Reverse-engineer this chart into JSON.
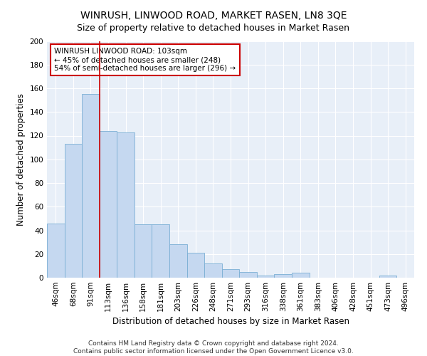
{
  "title": "WINRUSH, LINWOOD ROAD, MARKET RASEN, LN8 3QE",
  "subtitle": "Size of property relative to detached houses in Market Rasen",
  "xlabel": "Distribution of detached houses by size in Market Rasen",
  "ylabel": "Number of detached properties",
  "categories": [
    "46sqm",
    "68sqm",
    "91sqm",
    "113sqm",
    "136sqm",
    "158sqm",
    "181sqm",
    "203sqm",
    "226sqm",
    "248sqm",
    "271sqm",
    "293sqm",
    "316sqm",
    "338sqm",
    "361sqm",
    "383sqm",
    "406sqm",
    "428sqm",
    "451sqm",
    "473sqm",
    "496sqm"
  ],
  "values": [
    46,
    113,
    155,
    124,
    123,
    45,
    45,
    28,
    21,
    12,
    7,
    5,
    2,
    3,
    4,
    0,
    0,
    0,
    0,
    2,
    0
  ],
  "bar_color": "#c5d8f0",
  "bar_edge_color": "#7aafd4",
  "vline_x_index": 3,
  "vline_color": "#cc0000",
  "annotation_text": "WINRUSH LINWOOD ROAD: 103sqm\n← 45% of detached houses are smaller (248)\n54% of semi-detached houses are larger (296) →",
  "annotation_box_color": "white",
  "annotation_box_edge_color": "#cc0000",
  "ylim": [
    0,
    200
  ],
  "yticks": [
    0,
    20,
    40,
    60,
    80,
    100,
    120,
    140,
    160,
    180,
    200
  ],
  "background_color": "#e8eff8",
  "footer_text": "Contains HM Land Registry data © Crown copyright and database right 2024.\nContains public sector information licensed under the Open Government Licence v3.0.",
  "title_fontsize": 10,
  "subtitle_fontsize": 9,
  "xlabel_fontsize": 8.5,
  "ylabel_fontsize": 8.5,
  "tick_fontsize": 7.5,
  "annotation_fontsize": 7.5,
  "footer_fontsize": 6.5
}
